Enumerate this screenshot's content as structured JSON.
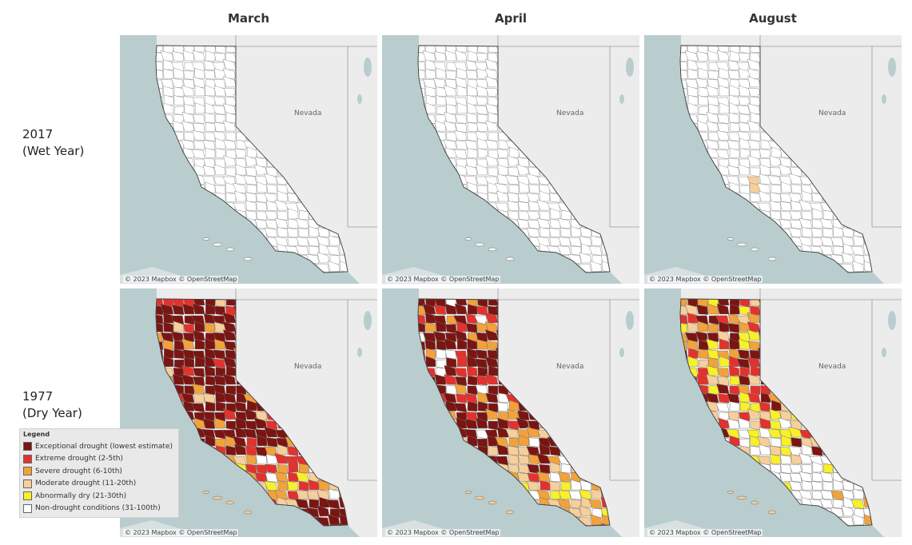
{
  "columns": [
    "March",
    "April",
    "August"
  ],
  "rows": [
    {
      "line1": "2017",
      "line2": "(Wet Year)"
    },
    {
      "line1": "1977",
      "line2": "(Dry Year)"
    }
  ],
  "map_labels": {
    "state": "Nevada",
    "attribution": "© 2023 Mapbox © OpenStreetMap"
  },
  "legend": {
    "title": "Legend",
    "items": [
      {
        "label": "Exceptional drought (lowest estimate)",
        "color": "#7b1512"
      },
      {
        "label": "Extreme drought (2-5th)",
        "color": "#e3322d"
      },
      {
        "label": "Severe drought (6-10th)",
        "color": "#f2a23a"
      },
      {
        "label": "Moderate drought (11-20th)",
        "color": "#f6cf9b"
      },
      {
        "label": "Abnormally dry (21-30th)",
        "color": "#f8f02a"
      },
      {
        "label": "Non-drought conditions (31-100th)",
        "color": "#ffffff"
      }
    ]
  },
  "colors": {
    "water": "#b9cdcf",
    "land": "#ececec",
    "border": "#9a9a9a",
    "california": "#fafafa"
  }
}
